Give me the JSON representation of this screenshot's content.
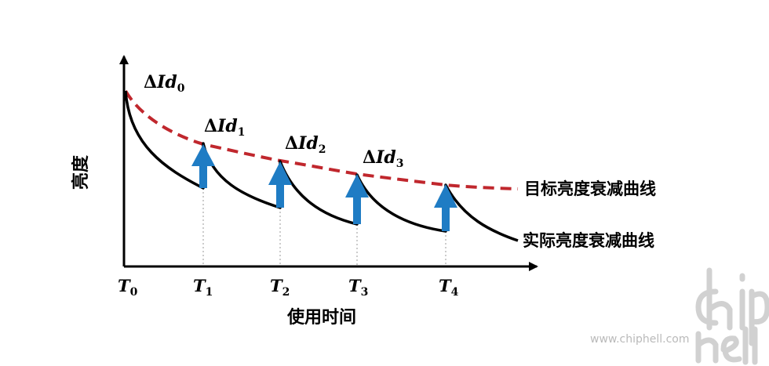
{
  "axes": {
    "y_label": "亮度",
    "x_label": "使用时间",
    "ticks": [
      {
        "base": "T",
        "sub": "0"
      },
      {
        "base": "T",
        "sub": "1"
      },
      {
        "base": "T",
        "sub": "2"
      },
      {
        "base": "T",
        "sub": "3"
      },
      {
        "base": "T",
        "sub": "4"
      }
    ]
  },
  "annotations": [
    {
      "prefix": "Δ",
      "main": "Id",
      "sub": "0"
    },
    {
      "prefix": "Δ",
      "main": "Id",
      "sub": "1"
    },
    {
      "prefix": "Δ",
      "main": "Id",
      "sub": "2"
    },
    {
      "prefix": "Δ",
      "main": "Id",
      "sub": "3"
    }
  ],
  "curves": {
    "target_label": "目标亮度衰减曲线",
    "actual_label": "实际亮度衰减曲线"
  },
  "colors": {
    "target_curve": "#c0272d",
    "actual_curve": "#000000",
    "arrow": "#1f7cc4",
    "axis": "#000000"
  },
  "watermark": {
    "logo": "chip hell",
    "site": "www.chiphell.com"
  }
}
